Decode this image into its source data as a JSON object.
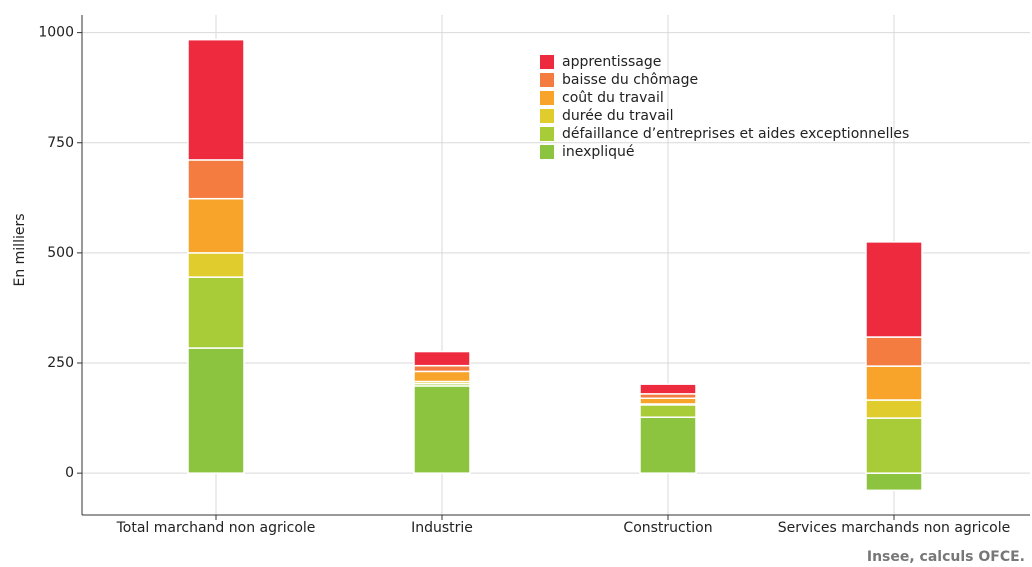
{
  "chart_data": {
    "type": "stacked_bar",
    "ylabel": "En milliers",
    "source": "Insee, calculs OFCE.",
    "categories": [
      "Total marchand non agricole",
      "Industrie",
      "Construction",
      "Services marchands non agricole"
    ],
    "series": [
      {
        "name": "apprentissage",
        "color": "#ee2a3f",
        "values": [
          273,
          32,
          22,
          216
        ]
      },
      {
        "name": "baisse du chômage",
        "color": "#f47c41",
        "values": [
          88,
          13,
          10,
          66
        ]
      },
      {
        "name": "coût du travail",
        "color": "#f8a42a",
        "values": [
          123,
          23,
          13,
          77
        ]
      },
      {
        "name": "durée du travail",
        "color": "#e0cc2c",
        "values": [
          55,
          5,
          2,
          41
        ]
      },
      {
        "name": "défaillance d’entreprises et aides exceptionnelles",
        "color": "#a8cc38",
        "values": [
          161,
          5,
          28,
          125
        ]
      },
      {
        "name": "inexpliqué",
        "color": "#8dc43f",
        "values": [
          284,
          198,
          127,
          -39
        ]
      }
    ],
    "ylim": [
      -95,
      1040
    ],
    "yticks": [
      0,
      250,
      500,
      750,
      1000
    ],
    "grid": true
  }
}
